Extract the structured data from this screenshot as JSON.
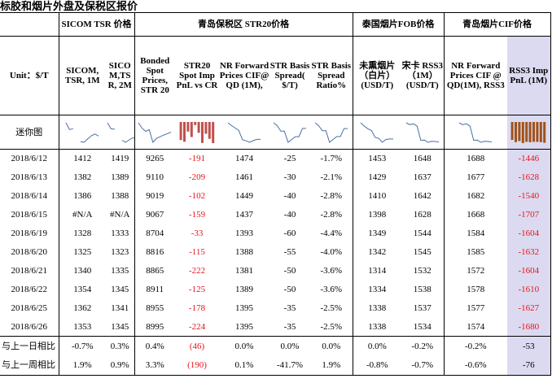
{
  "title": "标胶和烟片外盘及保税区报价",
  "groups": {
    "sicom": "SICOM TSR 价格",
    "qingdao_bonded": "青岛保税区 STR20价格",
    "thai_fob": "泰国烟片FOB价格",
    "qingdao_cif": "青岛烟片CIF价格"
  },
  "columns": [
    "Unit：$/T",
    "SICOM, TSR, 1M",
    "SICO M,TS R, 2M",
    "Bonded Spot Prices, STR 20",
    "STR20 Spot Imp PnL vs CR",
    "NR Forward Prices CIF@ QD (1M),",
    "STR Basis Spread( $/T)",
    "STR Basis Spread Ratio%",
    "未熏烟片（白片）(USD/T)",
    "宋卡 RSS3 （1M） (USD/T)",
    "NR Forward Prices CIF @ QD(1M), RSS3",
    "RSS3 Imp PnL (1M)"
  ],
  "mini_label": "迷你图",
  "rows": [
    {
      "date": "2018/6/12",
      "c": [
        "1412",
        "1419",
        "9265",
        "-191",
        "1474",
        "-25",
        "-1.7%",
        "1453",
        "1648",
        "1688",
        "-1446"
      ]
    },
    {
      "date": "2018/6/13",
      "c": [
        "1382",
        "1389",
        "9110",
        "-209",
        "1461",
        "-30",
        "-2.1%",
        "1429",
        "1637",
        "1677",
        "-1628"
      ]
    },
    {
      "date": "2018/6/14",
      "c": [
        "1386",
        "1388",
        "9019",
        "-102",
        "1449",
        "-40",
        "-2.8%",
        "1410",
        "1642",
        "1682",
        "-1540"
      ]
    },
    {
      "date": "2018/6/15",
      "c": [
        "#N/A",
        "#N/A",
        "9067",
        "-159",
        "1437",
        "-40",
        "-2.8%",
        "1398",
        "1628",
        "1668",
        "-1707"
      ]
    },
    {
      "date": "2018/6/19",
      "c": [
        "1328",
        "1333",
        "8704",
        "-33",
        "1393",
        "-60",
        "-4.4%",
        "1349",
        "1544",
        "1584",
        "-1604"
      ]
    },
    {
      "date": "2018/6/20",
      "c": [
        "1325",
        "1323",
        "8816",
        "-115",
        "1388",
        "-55",
        "-4.0%",
        "1342",
        "1545",
        "1585",
        "-1632"
      ]
    },
    {
      "date": "2018/6/21",
      "c": [
        "1340",
        "1335",
        "8865",
        "-222",
        "1381",
        "-50",
        "-3.6%",
        "1314",
        "1532",
        "1572",
        "-1604"
      ]
    },
    {
      "date": "2018/6/22",
      "c": [
        "1354",
        "1345",
        "8911",
        "-125",
        "1389",
        "-50",
        "-3.6%",
        "1334",
        "1538",
        "1578",
        "-1610"
      ]
    },
    {
      "date": "2018/6/25",
      "c": [
        "1362",
        "1341",
        "8955",
        "-178",
        "1395",
        "-35",
        "-2.5%",
        "1338",
        "1537",
        "1577",
        "-1627"
      ]
    },
    {
      "date": "2018/6/26",
      "c": [
        "1353",
        "1345",
        "8995",
        "-224",
        "1395",
        "-35",
        "-2.5%",
        "1338",
        "1534",
        "1574",
        "-1680"
      ]
    }
  ],
  "summary": [
    {
      "label": "与上一日相比",
      "c": [
        "-0.7%",
        "0.3%",
        "0.4%",
        "(46)",
        "0.0%",
        "0.0%",
        "0.0%",
        "0.0%",
        "-0.2%",
        "-0.2%",
        "-53"
      ]
    },
    {
      "label": "与上一周相比",
      "c": [
        "1.9%",
        "0.9%",
        "3.3%",
        "(190)",
        "0.1%",
        "-41.7%",
        "1.9%",
        "-0.8%",
        "-0.7%",
        "-0.6%",
        "-76"
      ]
    }
  ],
  "colors": {
    "negative": "#e8141b",
    "highlight": "#dcdaf0",
    "line": "#4a6fa5",
    "bar_pnl": "#c0504d",
    "bar_rss": "#a0521a"
  }
}
